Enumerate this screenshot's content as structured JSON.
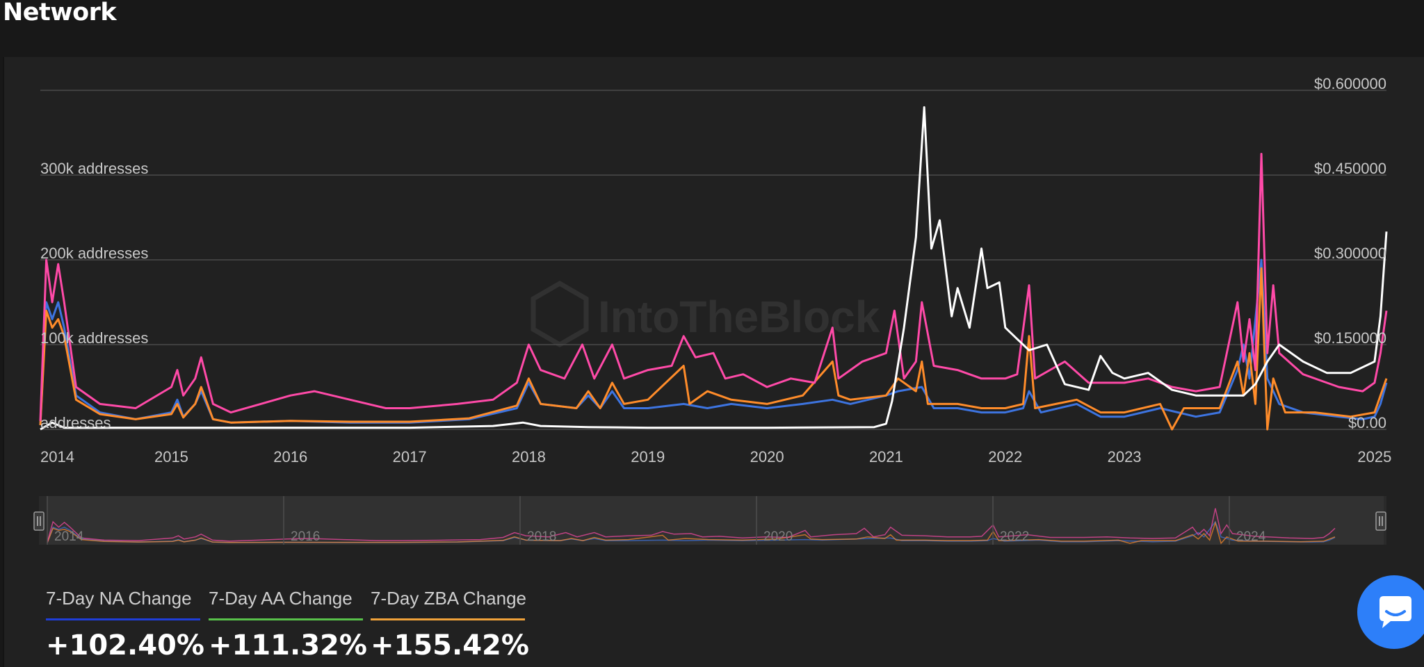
{
  "header": {
    "title": "Network"
  },
  "watermark": "IntoTheBlock",
  "chart_data": {
    "type": "line",
    "x_ticks": [
      "2014",
      "2015",
      "2016",
      "2017",
      "2018",
      "2019",
      "2020",
      "2021",
      "2022",
      "2023",
      "2025"
    ],
    "x_range": [
      2013.9,
      2025.2
    ],
    "y_left": {
      "ticks": [
        "addresses",
        "100k addresses",
        "200k addresses",
        "300k addresses"
      ],
      "values": [
        0,
        100000,
        200000,
        300000
      ],
      "range": [
        0,
        400000
      ]
    },
    "y_right": {
      "ticks": [
        "$0.00",
        "$0.150000",
        "$0.300000",
        "$0.450000",
        "$0.600000"
      ],
      "values": [
        0,
        0.15,
        0.3,
        0.45,
        0.6
      ],
      "range": [
        0,
        0.6
      ]
    },
    "grid": true,
    "series": [
      {
        "color": "#3d74e0",
        "axis": "left",
        "points": [
          [
            2013.9,
            5000
          ],
          [
            2013.95,
            150000
          ],
          [
            2014.0,
            130000
          ],
          [
            2014.05,
            150000
          ],
          [
            2014.1,
            120000
          ],
          [
            2014.2,
            40000
          ],
          [
            2014.4,
            20000
          ],
          [
            2014.7,
            12000
          ],
          [
            2015.0,
            20000
          ],
          [
            2015.05,
            35000
          ],
          [
            2015.1,
            15000
          ],
          [
            2015.2,
            30000
          ],
          [
            2015.25,
            45000
          ],
          [
            2015.35,
            12000
          ],
          [
            2015.5,
            8000
          ],
          [
            2016.0,
            10000
          ],
          [
            2016.5,
            8000
          ],
          [
            2017.0,
            8000
          ],
          [
            2017.5,
            12000
          ],
          [
            2017.9,
            25000
          ],
          [
            2018.0,
            55000
          ],
          [
            2018.1,
            30000
          ],
          [
            2018.4,
            25000
          ],
          [
            2018.5,
            40000
          ],
          [
            2018.6,
            25000
          ],
          [
            2018.7,
            45000
          ],
          [
            2018.8,
            25000
          ],
          [
            2019.0,
            25000
          ],
          [
            2019.3,
            30000
          ],
          [
            2019.5,
            25000
          ],
          [
            2019.7,
            30000
          ],
          [
            2020.0,
            25000
          ],
          [
            2020.3,
            30000
          ],
          [
            2020.55,
            35000
          ],
          [
            2020.7,
            30000
          ],
          [
            2021.0,
            40000
          ],
          [
            2021.1,
            45000
          ],
          [
            2021.3,
            50000
          ],
          [
            2021.4,
            25000
          ],
          [
            2021.6,
            25000
          ],
          [
            2021.8,
            20000
          ],
          [
            2022.0,
            20000
          ],
          [
            2022.15,
            25000
          ],
          [
            2022.2,
            45000
          ],
          [
            2022.3,
            20000
          ],
          [
            2022.6,
            30000
          ],
          [
            2022.8,
            15000
          ],
          [
            2023.0,
            15000
          ],
          [
            2023.3,
            25000
          ],
          [
            2023.6,
            15000
          ],
          [
            2023.8,
            20000
          ],
          [
            2023.95,
            70000
          ],
          [
            2024.0,
            100000
          ],
          [
            2024.05,
            60000
          ],
          [
            2024.15,
            200000
          ],
          [
            2024.2,
            60000
          ],
          [
            2024.3,
            30000
          ],
          [
            2024.5,
            20000
          ],
          [
            2024.8,
            15000
          ],
          [
            2025.0,
            12000
          ],
          [
            2025.1,
            15000
          ],
          [
            2025.15,
            30000
          ],
          [
            2025.2,
            55000
          ]
        ]
      },
      {
        "color": "#ff8c2a",
        "axis": "left",
        "points": [
          [
            2013.9,
            5000
          ],
          [
            2013.95,
            140000
          ],
          [
            2014.0,
            120000
          ],
          [
            2014.05,
            130000
          ],
          [
            2014.1,
            110000
          ],
          [
            2014.2,
            35000
          ],
          [
            2014.4,
            18000
          ],
          [
            2014.7,
            12000
          ],
          [
            2015.0,
            18000
          ],
          [
            2015.05,
            30000
          ],
          [
            2015.1,
            14000
          ],
          [
            2015.2,
            30000
          ],
          [
            2015.25,
            50000
          ],
          [
            2015.35,
            12000
          ],
          [
            2015.5,
            8000
          ],
          [
            2016.0,
            10000
          ],
          [
            2016.5,
            9000
          ],
          [
            2017.0,
            9000
          ],
          [
            2017.5,
            13000
          ],
          [
            2017.9,
            28000
          ],
          [
            2018.0,
            60000
          ],
          [
            2018.1,
            30000
          ],
          [
            2018.4,
            25000
          ],
          [
            2018.5,
            45000
          ],
          [
            2018.6,
            25000
          ],
          [
            2018.7,
            55000
          ],
          [
            2018.8,
            30000
          ],
          [
            2019.0,
            35000
          ],
          [
            2019.3,
            75000
          ],
          [
            2019.35,
            30000
          ],
          [
            2019.5,
            45000
          ],
          [
            2019.7,
            35000
          ],
          [
            2020.0,
            30000
          ],
          [
            2020.3,
            40000
          ],
          [
            2020.55,
            80000
          ],
          [
            2020.6,
            40000
          ],
          [
            2020.7,
            35000
          ],
          [
            2021.0,
            40000
          ],
          [
            2021.1,
            60000
          ],
          [
            2021.25,
            45000
          ],
          [
            2021.3,
            80000
          ],
          [
            2021.35,
            30000
          ],
          [
            2021.6,
            30000
          ],
          [
            2021.8,
            25000
          ],
          [
            2022.0,
            25000
          ],
          [
            2022.15,
            30000
          ],
          [
            2022.2,
            110000
          ],
          [
            2022.25,
            25000
          ],
          [
            2022.6,
            35000
          ],
          [
            2022.8,
            20000
          ],
          [
            2023.0,
            20000
          ],
          [
            2023.3,
            30000
          ],
          [
            2023.4,
            0
          ],
          [
            2023.5,
            25000
          ],
          [
            2023.8,
            25000
          ],
          [
            2023.95,
            80000
          ],
          [
            2024.0,
            40000
          ],
          [
            2024.05,
            90000
          ],
          [
            2024.1,
            30000
          ],
          [
            2024.15,
            190000
          ],
          [
            2024.2,
            0
          ],
          [
            2024.25,
            60000
          ],
          [
            2024.35,
            20000
          ],
          [
            2024.6,
            20000
          ],
          [
            2024.9,
            15000
          ],
          [
            2025.1,
            20000
          ],
          [
            2025.15,
            40000
          ],
          [
            2025.2,
            60000
          ]
        ]
      },
      {
        "color": "#ff4aa8",
        "axis": "left",
        "points": [
          [
            2013.9,
            10000
          ],
          [
            2013.95,
            200000
          ],
          [
            2014.0,
            150000
          ],
          [
            2014.05,
            195000
          ],
          [
            2014.1,
            150000
          ],
          [
            2014.2,
            50000
          ],
          [
            2014.4,
            30000
          ],
          [
            2014.7,
            25000
          ],
          [
            2015.0,
            50000
          ],
          [
            2015.05,
            70000
          ],
          [
            2015.1,
            40000
          ],
          [
            2015.2,
            60000
          ],
          [
            2015.25,
            85000
          ],
          [
            2015.35,
            30000
          ],
          [
            2015.5,
            20000
          ],
          [
            2016.0,
            40000
          ],
          [
            2016.2,
            45000
          ],
          [
            2016.5,
            35000
          ],
          [
            2016.8,
            25000
          ],
          [
            2017.0,
            25000
          ],
          [
            2017.4,
            30000
          ],
          [
            2017.7,
            35000
          ],
          [
            2017.9,
            55000
          ],
          [
            2018.0,
            100000
          ],
          [
            2018.1,
            70000
          ],
          [
            2018.3,
            60000
          ],
          [
            2018.45,
            100000
          ],
          [
            2018.55,
            60000
          ],
          [
            2018.7,
            100000
          ],
          [
            2018.8,
            60000
          ],
          [
            2019.0,
            70000
          ],
          [
            2019.2,
            75000
          ],
          [
            2019.3,
            110000
          ],
          [
            2019.4,
            85000
          ],
          [
            2019.55,
            90000
          ],
          [
            2019.65,
            60000
          ],
          [
            2019.8,
            65000
          ],
          [
            2020.0,
            50000
          ],
          [
            2020.2,
            60000
          ],
          [
            2020.4,
            55000
          ],
          [
            2020.55,
            120000
          ],
          [
            2020.6,
            60000
          ],
          [
            2020.8,
            80000
          ],
          [
            2021.0,
            90000
          ],
          [
            2021.07,
            140000
          ],
          [
            2021.15,
            60000
          ],
          [
            2021.25,
            80000
          ],
          [
            2021.3,
            150000
          ],
          [
            2021.4,
            75000
          ],
          [
            2021.6,
            70000
          ],
          [
            2021.8,
            60000
          ],
          [
            2022.0,
            60000
          ],
          [
            2022.1,
            65000
          ],
          [
            2022.2,
            170000
          ],
          [
            2022.25,
            60000
          ],
          [
            2022.5,
            80000
          ],
          [
            2022.7,
            55000
          ],
          [
            2023.0,
            55000
          ],
          [
            2023.2,
            60000
          ],
          [
            2023.4,
            50000
          ],
          [
            2023.6,
            45000
          ],
          [
            2023.8,
            50000
          ],
          [
            2023.95,
            150000
          ],
          [
            2024.0,
            80000
          ],
          [
            2024.05,
            130000
          ],
          [
            2024.1,
            70000
          ],
          [
            2024.15,
            325000
          ],
          [
            2024.2,
            90000
          ],
          [
            2024.25,
            170000
          ],
          [
            2024.3,
            90000
          ],
          [
            2024.5,
            65000
          ],
          [
            2024.8,
            50000
          ],
          [
            2025.0,
            45000
          ],
          [
            2025.1,
            55000
          ],
          [
            2025.15,
            90000
          ],
          [
            2025.2,
            140000
          ]
        ]
      },
      {
        "color": "#ffffff",
        "axis": "right",
        "points": [
          [
            2013.9,
            0
          ],
          [
            2014.0,
            0.012
          ],
          [
            2014.1,
            0.003
          ],
          [
            2015.0,
            0.003
          ],
          [
            2016.0,
            0.003
          ],
          [
            2017.0,
            0.003
          ],
          [
            2017.7,
            0.006
          ],
          [
            2017.95,
            0.012
          ],
          [
            2018.1,
            0.006
          ],
          [
            2018.5,
            0.004
          ],
          [
            2019.0,
            0.003
          ],
          [
            2019.5,
            0.003
          ],
          [
            2020.0,
            0.003
          ],
          [
            2020.9,
            0.004
          ],
          [
            2021.0,
            0.01
          ],
          [
            2021.05,
            0.05
          ],
          [
            2021.15,
            0.18
          ],
          [
            2021.25,
            0.34
          ],
          [
            2021.32,
            0.57
          ],
          [
            2021.38,
            0.32
          ],
          [
            2021.45,
            0.37
          ],
          [
            2021.55,
            0.2
          ],
          [
            2021.6,
            0.25
          ],
          [
            2021.7,
            0.18
          ],
          [
            2021.8,
            0.32
          ],
          [
            2021.85,
            0.25
          ],
          [
            2021.95,
            0.26
          ],
          [
            2022.0,
            0.18
          ],
          [
            2022.1,
            0.16
          ],
          [
            2022.2,
            0.14
          ],
          [
            2022.35,
            0.15
          ],
          [
            2022.5,
            0.08
          ],
          [
            2022.7,
            0.07
          ],
          [
            2022.8,
            0.13
          ],
          [
            2022.9,
            0.1
          ],
          [
            2023.0,
            0.09
          ],
          [
            2023.2,
            0.1
          ],
          [
            2023.4,
            0.07
          ],
          [
            2023.6,
            0.06
          ],
          [
            2023.8,
            0.06
          ],
          [
            2024.0,
            0.06
          ],
          [
            2024.1,
            0.08
          ],
          [
            2024.2,
            0.12
          ],
          [
            2024.3,
            0.15
          ],
          [
            2024.5,
            0.12
          ],
          [
            2024.7,
            0.1
          ],
          [
            2024.9,
            0.1
          ],
          [
            2025.1,
            0.12
          ],
          [
            2025.15,
            0.2
          ],
          [
            2025.2,
            0.35
          ]
        ]
      }
    ],
    "navigator": {
      "labels": [
        "2014",
        "2016",
        "2018",
        "2020",
        "2022",
        "2024"
      ]
    }
  },
  "legend": [
    {
      "label": "7-Day NA Change",
      "value": "+102.40%",
      "color": "#1f3ed8"
    },
    {
      "label": "7-Day AA Change",
      "value": "+111.32%",
      "color": "#58c24a"
    },
    {
      "label": "7-Day ZBA Change",
      "value": "+155.42%",
      "color": "#f0a23a"
    }
  ]
}
